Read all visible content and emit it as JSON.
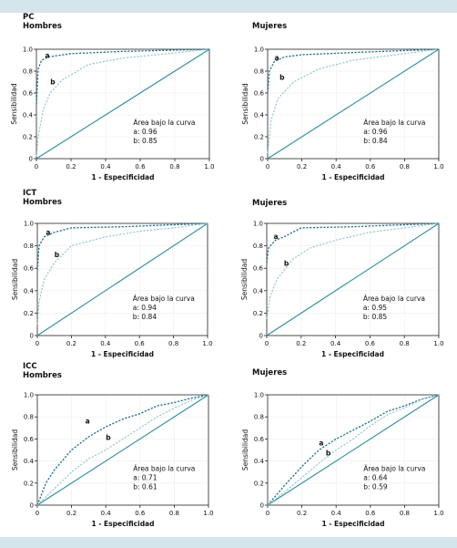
{
  "colors": {
    "band": "#d4e5ec",
    "diagonal": "#2e8ca0",
    "series_a": "#1f6f8b",
    "series_b": "#8cc4cf",
    "frame": "#222222"
  },
  "chart_data": [
    {
      "type": "line",
      "group": "PC",
      "panel": "Hombres",
      "xlabel": "1 - Especificidad",
      "ylabel": "Sensibilidad",
      "xlim": [
        0,
        1
      ],
      "ylim": [
        0,
        1
      ],
      "xticks": [
        "0",
        "0.2",
        "0.4",
        "0.6",
        "0.8",
        "1.0"
      ],
      "yticks": [
        "0",
        "0.2",
        "0.4",
        "0.6",
        "0.8",
        "1.0"
      ],
      "legend": {
        "title": "Área bajo la curva",
        "entries": [
          "a: 0.96",
          "b: 0.85"
        ]
      },
      "series": [
        {
          "name": "a",
          "points": [
            [
              0,
              0.5
            ],
            [
              0.01,
              0.82
            ],
            [
              0.03,
              0.9
            ],
            [
              0.07,
              0.93
            ],
            [
              0.2,
              0.96
            ],
            [
              0.5,
              0.98
            ],
            [
              1,
              1
            ]
          ]
        },
        {
          "name": "b",
          "points": [
            [
              0,
              0.02
            ],
            [
              0.01,
              0.2
            ],
            [
              0.04,
              0.45
            ],
            [
              0.08,
              0.6
            ],
            [
              0.15,
              0.72
            ],
            [
              0.3,
              0.86
            ],
            [
              0.5,
              0.92
            ],
            [
              0.7,
              0.95
            ],
            [
              1,
              1
            ]
          ]
        }
      ]
    },
    {
      "type": "line",
      "group": "",
      "panel": "Mujeres",
      "xlabel": "1 - Especificidad",
      "ylabel": "Sensibilidad",
      "xlim": [
        0,
        1
      ],
      "ylim": [
        0,
        1
      ],
      "xticks": [
        "0",
        "0.2",
        "0.4",
        "0.6",
        "0.8",
        "1.0"
      ],
      "yticks": [
        "0",
        "0.2",
        "0.4",
        "0.6",
        "0.8",
        "1.0"
      ],
      "legend": {
        "title": "Área bajo la curva",
        "entries": [
          "a: 0.96",
          "b: 0.84"
        ]
      },
      "series": [
        {
          "name": "a",
          "points": [
            [
              0,
              0.6
            ],
            [
              0.01,
              0.8
            ],
            [
              0.04,
              0.89
            ],
            [
              0.1,
              0.93
            ],
            [
              0.2,
              0.95
            ],
            [
              0.5,
              0.97
            ],
            [
              1,
              1
            ]
          ]
        },
        {
          "name": "b",
          "points": [
            [
              0,
              0.05
            ],
            [
              0.02,
              0.35
            ],
            [
              0.06,
              0.55
            ],
            [
              0.15,
              0.7
            ],
            [
              0.3,
              0.82
            ],
            [
              0.5,
              0.9
            ],
            [
              0.7,
              0.94
            ],
            [
              1,
              1
            ]
          ]
        }
      ]
    },
    {
      "type": "line",
      "group": "ICT",
      "panel": "Hombres",
      "xlabel": "1 - Especificidad",
      "ylabel": "Sensibilidad",
      "xlim": [
        0,
        1
      ],
      "ylim": [
        0,
        1
      ],
      "xticks": [
        "0",
        "0.2",
        "0.4",
        "0.6",
        "0.8",
        "1.0"
      ],
      "yticks": [
        "0",
        "0.2",
        "0.4",
        "0.6",
        "0.8",
        "1.0"
      ],
      "legend": {
        "title": "Área bajo la curva",
        "entries": [
          "a: 0.94",
          "b: 0.84"
        ]
      },
      "series": [
        {
          "name": "a",
          "points": [
            [
              0,
              0.58
            ],
            [
              0.01,
              0.8
            ],
            [
              0.04,
              0.88
            ],
            [
              0.1,
              0.92
            ],
            [
              0.2,
              0.96
            ],
            [
              0.5,
              0.97
            ],
            [
              1,
              1
            ]
          ]
        },
        {
          "name": "b",
          "points": [
            [
              0,
              0.1
            ],
            [
              0.01,
              0.3
            ],
            [
              0.04,
              0.5
            ],
            [
              0.1,
              0.65
            ],
            [
              0.2,
              0.8
            ],
            [
              0.4,
              0.88
            ],
            [
              0.6,
              0.93
            ],
            [
              0.8,
              0.96
            ],
            [
              1,
              1
            ]
          ]
        }
      ]
    },
    {
      "type": "line",
      "group": "",
      "panel": "Mujeres",
      "xlabel": "1 - Especificidad",
      "ylabel": "Sensibilidad",
      "xlim": [
        0,
        1
      ],
      "ylim": [
        0,
        1
      ],
      "xticks": [
        "0",
        "0.2",
        "0.4",
        "0.6",
        "0.8",
        "1.0"
      ],
      "yticks": [
        "0",
        "0.2",
        "0.4",
        "0.6",
        "0.8",
        "1.0"
      ],
      "legend": {
        "title": "Área bajo la curva",
        "entries": [
          "a: 0.95",
          "b: 0.85"
        ]
      },
      "series": [
        {
          "name": "a",
          "points": [
            [
              0,
              0.65
            ],
            [
              0.01,
              0.78
            ],
            [
              0.05,
              0.85
            ],
            [
              0.1,
              0.88
            ],
            [
              0.2,
              0.96
            ],
            [
              0.5,
              0.97
            ],
            [
              1,
              1
            ]
          ]
        },
        {
          "name": "b",
          "points": [
            [
              0,
              0.15
            ],
            [
              0.02,
              0.35
            ],
            [
              0.06,
              0.5
            ],
            [
              0.15,
              0.68
            ],
            [
              0.25,
              0.78
            ],
            [
              0.4,
              0.85
            ],
            [
              0.6,
              0.92
            ],
            [
              1,
              1
            ]
          ]
        }
      ]
    },
    {
      "type": "line",
      "group": "ICC",
      "panel": "Hombres",
      "xlabel": "1 - Especificidad",
      "ylabel": "Sensibilidad",
      "xlim": [
        0,
        1
      ],
      "ylim": [
        0,
        1
      ],
      "xticks": [
        "0",
        "0.2",
        "0.4",
        "0.6",
        "0.8",
        "1.0"
      ],
      "yticks": [
        "0",
        "0.2",
        "0.4",
        "0.6",
        "0.8",
        "1.0"
      ],
      "legend": {
        "title": "Área bajo la curva",
        "entries": [
          "a: 0.71",
          "b: 0.61"
        ]
      },
      "series": [
        {
          "name": "a",
          "points": [
            [
              0,
              0
            ],
            [
              0.05,
              0.2
            ],
            [
              0.1,
              0.32
            ],
            [
              0.2,
              0.5
            ],
            [
              0.3,
              0.62
            ],
            [
              0.4,
              0.71
            ],
            [
              0.5,
              0.78
            ],
            [
              0.6,
              0.83
            ],
            [
              0.7,
              0.9
            ],
            [
              0.8,
              0.93
            ],
            [
              0.9,
              0.97
            ],
            [
              1,
              1
            ]
          ]
        },
        {
          "name": "b",
          "points": [
            [
              0,
              0
            ],
            [
              0.1,
              0.15
            ],
            [
              0.2,
              0.3
            ],
            [
              0.3,
              0.42
            ],
            [
              0.4,
              0.5
            ],
            [
              0.5,
              0.6
            ],
            [
              0.6,
              0.7
            ],
            [
              0.7,
              0.8
            ],
            [
              0.8,
              0.88
            ],
            [
              0.9,
              0.95
            ],
            [
              1,
              1
            ]
          ]
        }
      ]
    },
    {
      "type": "line",
      "group": "",
      "panel": "Mujeres",
      "xlabel": "1 - Especificidad",
      "ylabel": "Sensibilidad",
      "xlim": [
        0,
        1
      ],
      "ylim": [
        0,
        1
      ],
      "xticks": [
        "0",
        "0.2",
        "0.4",
        "0.6",
        "0.8",
        "1.0"
      ],
      "yticks": [
        "0",
        "0.2",
        "0.4",
        "0.6",
        "0.8",
        "1.0"
      ],
      "legend": {
        "title": "Área bajo la curva",
        "entries": [
          "a: 0.64",
          "b: 0.59"
        ]
      },
      "series": [
        {
          "name": "a",
          "points": [
            [
              0,
              0
            ],
            [
              0.1,
              0.18
            ],
            [
              0.2,
              0.35
            ],
            [
              0.3,
              0.5
            ],
            [
              0.4,
              0.6
            ],
            [
              0.5,
              0.68
            ],
            [
              0.6,
              0.76
            ],
            [
              0.7,
              0.85
            ],
            [
              0.8,
              0.9
            ],
            [
              0.9,
              0.96
            ],
            [
              1,
              1
            ]
          ]
        },
        {
          "name": "b",
          "points": [
            [
              0,
              0
            ],
            [
              0.1,
              0.12
            ],
            [
              0.2,
              0.25
            ],
            [
              0.3,
              0.38
            ],
            [
              0.4,
              0.5
            ],
            [
              0.5,
              0.6
            ],
            [
              0.6,
              0.72
            ],
            [
              0.7,
              0.82
            ],
            [
              0.8,
              0.88
            ],
            [
              0.9,
              0.96
            ],
            [
              1,
              1
            ]
          ]
        }
      ]
    }
  ]
}
